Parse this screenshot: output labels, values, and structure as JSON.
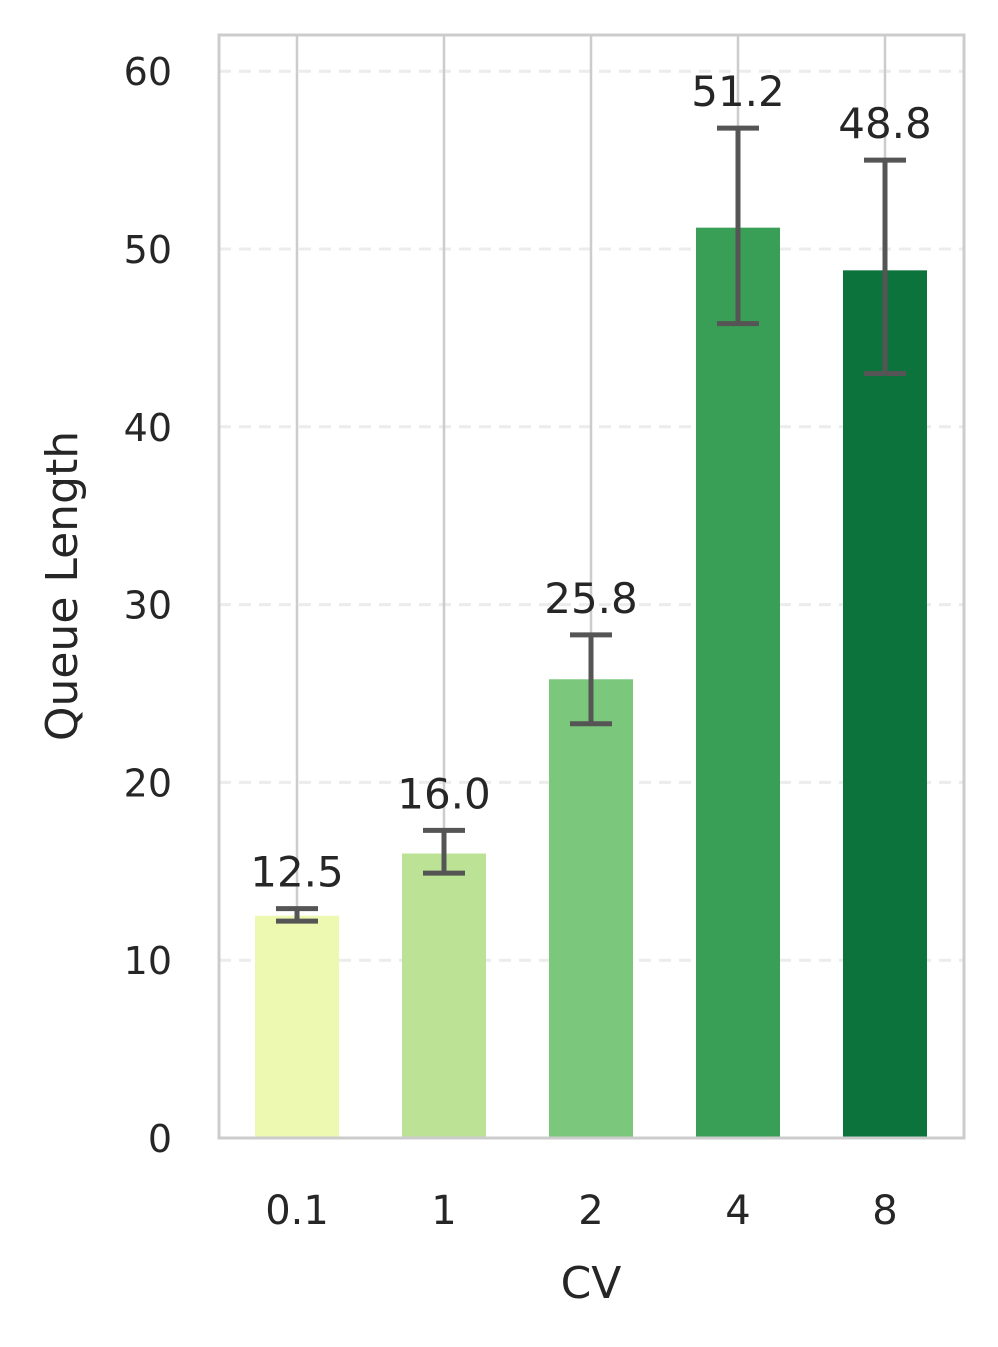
{
  "chart_data": {
    "type": "bar",
    "title": "",
    "xlabel": "CV",
    "ylabel": "Queue Length",
    "categories": [
      "0.1",
      "1",
      "2",
      "4",
      "8"
    ],
    "values": [
      12.5,
      16.0,
      25.8,
      51.2,
      48.8
    ],
    "value_labels": [
      "12.5",
      "16.0",
      "25.8",
      "51.2",
      "48.8"
    ],
    "error_bars": [
      {
        "low": 12.2,
        "high": 12.9
      },
      {
        "low": 14.9,
        "high": 17.3
      },
      {
        "low": 23.3,
        "high": 28.3
      },
      {
        "low": 45.8,
        "high": 56.8
      },
      {
        "low": 43.0,
        "high": 55.0
      }
    ],
    "yticks": [
      0,
      10,
      20,
      30,
      40,
      50,
      60
    ],
    "ytick_labels": [
      "0",
      "10",
      "20",
      "30",
      "40",
      "50",
      "60"
    ],
    "ylim": [
      0,
      62
    ],
    "bar_colors": [
      "#edf8b1",
      "#bce395",
      "#7bc87c",
      "#3a9f56",
      "#0b733b"
    ],
    "grid": {
      "x": true,
      "y": true,
      "y_style": "dashed"
    },
    "error_color": "#555555"
  }
}
